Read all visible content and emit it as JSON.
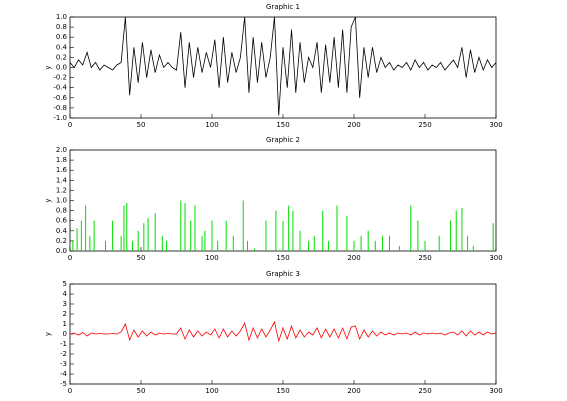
{
  "chart_data": [
    {
      "type": "line",
      "title": "Graphic 1",
      "y_label": "y",
      "color": "#000000",
      "x": [
        0,
        3,
        6,
        9,
        12,
        15,
        18,
        21,
        24,
        27,
        30,
        33,
        36,
        39,
        42,
        45,
        48,
        51,
        54,
        57,
        60,
        63,
        66,
        69,
        72,
        75,
        78,
        81,
        84,
        87,
        90,
        93,
        96,
        99,
        102,
        105,
        108,
        111,
        114,
        117,
        120,
        123,
        126,
        129,
        132,
        135,
        138,
        141,
        144,
        147,
        150,
        153,
        156,
        159,
        162,
        165,
        168,
        171,
        174,
        177,
        180,
        183,
        186,
        189,
        192,
        195,
        198,
        201,
        204,
        207,
        210,
        213,
        216,
        219,
        222,
        225,
        228,
        231,
        234,
        237,
        240,
        243,
        246,
        249,
        252,
        255,
        258,
        261,
        264,
        267,
        270,
        273,
        276,
        279,
        282,
        285,
        288,
        291,
        294,
        297,
        300
      ],
      "values": [
        0.1,
        0.0,
        0.15,
        0.05,
        0.3,
        0.0,
        0.1,
        -0.05,
        0.05,
        0.0,
        -0.05,
        0.05,
        0.1,
        1.0,
        -0.55,
        0.4,
        -0.3,
        0.5,
        -0.2,
        0.35,
        -0.1,
        0.25,
        0.0,
        0.1,
        0.0,
        -0.05,
        0.7,
        -0.4,
        0.5,
        -0.2,
        0.4,
        -0.1,
        0.3,
        0.0,
        0.55,
        -0.4,
        0.6,
        -0.3,
        0.3,
        -0.1,
        0.2,
        1.0,
        -0.5,
        0.6,
        -0.3,
        0.5,
        -0.2,
        0.2,
        1.0,
        -0.95,
        0.4,
        -0.4,
        0.75,
        -0.5,
        0.5,
        -0.3,
        0.2,
        0.0,
        0.5,
        -0.5,
        0.45,
        -0.3,
        0.6,
        -0.4,
        0.75,
        -0.5,
        0.8,
        1.0,
        -0.6,
        0.4,
        -0.2,
        0.4,
        -0.1,
        0.2,
        0.0,
        0.1,
        -0.05,
        0.05,
        0.0,
        0.1,
        -0.05,
        0.15,
        0.0,
        0.1,
        -0.05,
        0.05,
        0.0,
        0.1,
        -0.05,
        0.05,
        0.15,
        0.0,
        0.4,
        -0.2,
        0.35,
        -0.1,
        0.2,
        -0.05,
        0.15,
        0.0,
        0.1
      ],
      "xlim": [
        0,
        300
      ],
      "xticks": [
        0,
        50,
        100,
        150,
        200,
        250,
        300
      ],
      "ylim": [
        -1,
        1
      ],
      "yticks": [
        {
          "value": -1,
          "label": "-1.0"
        },
        -0.8,
        -0.6,
        -0.4,
        -0.2,
        {
          "value": 0,
          "label": "0.0"
        },
        0.2,
        0.4,
        0.6,
        0.8,
        {
          "value": 1,
          "label": "1.0"
        }
      ]
    },
    {
      "type": "bar",
      "title": "Graphic 2",
      "y_label": "y",
      "color": "#00dd00",
      "x": [
        2,
        5,
        8,
        11,
        14,
        17,
        25,
        30,
        36,
        38,
        40,
        44,
        48,
        52,
        55,
        60,
        65,
        68,
        78,
        81,
        85,
        88,
        93,
        95,
        100,
        104,
        110,
        115,
        122,
        125,
        130,
        138,
        145,
        150,
        154,
        157,
        162,
        168,
        172,
        178,
        182,
        188,
        195,
        200,
        205,
        210,
        215,
        220,
        225,
        232,
        240,
        245,
        250,
        260,
        268,
        272,
        276,
        280,
        284,
        298
      ],
      "values": [
        0.2,
        0.45,
        0.6,
        0.9,
        0.3,
        0.6,
        0.2,
        0.6,
        0.3,
        0.9,
        0.95,
        0.2,
        0.4,
        0.55,
        0.65,
        0.75,
        0.3,
        0.2,
        1.0,
        0.95,
        0.6,
        0.9,
        0.3,
        0.4,
        0.6,
        0.2,
        0.6,
        0.3,
        1.0,
        0.2,
        0.05,
        0.6,
        0.8,
        0.6,
        0.9,
        0.8,
        0.4,
        0.2,
        0.3,
        0.8,
        0.2,
        0.9,
        0.7,
        0.2,
        0.3,
        0.4,
        0.2,
        0.3,
        0.3,
        0.1,
        0.9,
        0.6,
        0.2,
        0.3,
        0.6,
        0.8,
        0.85,
        0.3,
        0.1,
        0.55
      ],
      "xlim": [
        0,
        300
      ],
      "xticks": [
        0,
        50,
        100,
        150,
        200,
        250,
        300
      ],
      "ylim": [
        0,
        2
      ],
      "yticks": [
        {
          "value": 0,
          "label": "0.0"
        },
        0.2,
        0.4,
        0.6,
        0.8,
        {
          "value": 1,
          "label": "1.0"
        },
        1.2,
        1.4,
        1.6,
        1.8,
        {
          "value": 2,
          "label": "2.0"
        }
      ]
    },
    {
      "type": "line",
      "title": "Graphic 3",
      "y_label": "y",
      "color": "#ff0000",
      "x": [
        0,
        3,
        6,
        9,
        12,
        15,
        18,
        21,
        24,
        27,
        30,
        33,
        36,
        39,
        42,
        45,
        48,
        51,
        54,
        57,
        60,
        63,
        66,
        69,
        72,
        75,
        78,
        81,
        84,
        87,
        90,
        93,
        96,
        99,
        102,
        105,
        108,
        111,
        114,
        117,
        120,
        123,
        126,
        129,
        132,
        135,
        138,
        141,
        144,
        147,
        150,
        153,
        156,
        159,
        162,
        165,
        168,
        171,
        174,
        177,
        180,
        183,
        186,
        189,
        192,
        195,
        198,
        201,
        204,
        207,
        210,
        213,
        216,
        219,
        222,
        225,
        228,
        231,
        234,
        237,
        240,
        243,
        246,
        249,
        252,
        255,
        258,
        261,
        264,
        267,
        270,
        273,
        276,
        279,
        282,
        285,
        288,
        291,
        294,
        297,
        300
      ],
      "values": [
        0,
        0.1,
        -0.1,
        0.15,
        -0.2,
        0.1,
        0,
        0.05,
        0,
        0,
        0.05,
        0,
        0.2,
        1.0,
        -0.6,
        0.4,
        -0.3,
        0.3,
        -0.2,
        0.2,
        -0.1,
        0.1,
        0,
        0.05,
        0,
        0,
        0.6,
        -0.5,
        0.4,
        -0.3,
        0.3,
        -0.2,
        0.2,
        -0.1,
        0.5,
        -0.4,
        0.5,
        -0.3,
        0.3,
        -0.2,
        0.3,
        1.1,
        -0.6,
        0.6,
        -0.4,
        0.5,
        -0.3,
        0.4,
        1.2,
        -0.7,
        0.6,
        -0.5,
        0.8,
        -0.4,
        0.4,
        -0.3,
        0.2,
        -0.1,
        0.6,
        -0.4,
        0.5,
        -0.3,
        0.5,
        -0.4,
        0.6,
        -0.5,
        0.7,
        0.8,
        -0.5,
        0.4,
        -0.3,
        0.3,
        -0.2,
        0.2,
        -0.1,
        0.1,
        -0.1,
        0.1,
        0,
        0.1,
        -0.1,
        0.2,
        -0.1,
        0.1,
        0,
        0.1,
        0,
        0.1,
        -0.1,
        0.1,
        0.2,
        -0.1,
        0.3,
        -0.2,
        0.3,
        -0.1,
        0.2,
        -0.1,
        0.2,
        0,
        0.1
      ],
      "xlim": [
        0,
        300
      ],
      "xticks": [
        0,
        50,
        100,
        150,
        200,
        250,
        300
      ],
      "ylim": [
        -5,
        5
      ],
      "yticks": [
        -5,
        -4,
        -3,
        -2,
        -1,
        0,
        1,
        2,
        3,
        4,
        5
      ]
    }
  ]
}
